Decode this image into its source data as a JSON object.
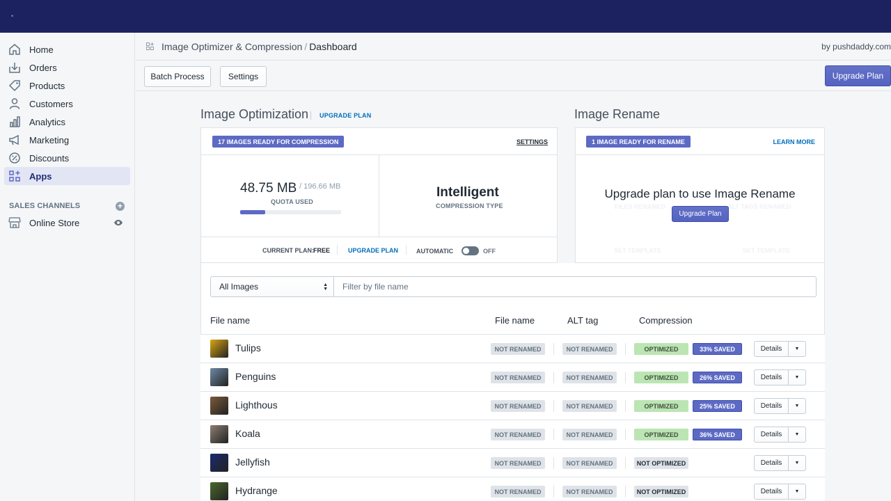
{
  "sidebar": {
    "items": [
      {
        "label": "Home",
        "icon": "home-icon"
      },
      {
        "label": "Orders",
        "icon": "orders-icon"
      },
      {
        "label": "Products",
        "icon": "tag-icon"
      },
      {
        "label": "Customers",
        "icon": "person-icon"
      },
      {
        "label": "Analytics",
        "icon": "bar-chart-icon"
      },
      {
        "label": "Marketing",
        "icon": "megaphone-icon"
      },
      {
        "label": "Discounts",
        "icon": "discount-icon"
      },
      {
        "label": "Apps",
        "icon": "apps-icon"
      }
    ],
    "sales_channels_label": "SALES CHANNELS",
    "online_store_label": "Online Store"
  },
  "header": {
    "app_name": "Image Optimizer & Compression",
    "separator": "/",
    "page": "Dashboard",
    "by": "by pushdaddy.com"
  },
  "toolbar": {
    "batch_process": "Batch Process",
    "settings": "Settings",
    "upgrade_plan": "Upgrade Plan"
  },
  "optimization": {
    "title": "Image Optimization",
    "upgrade_link": "UPGRADE PLAN",
    "ready_badge": "17 IMAGES READY FOR COMPRESSION",
    "settings_link": "SETTINGS",
    "quota_used": "48.75 MB",
    "quota_total": "/ 196.66 MB",
    "quota_label": "QUOTA USED",
    "quota_fraction": 0.248,
    "compression_type": "Intelligent",
    "compression_label": "COMPRESSION TYPE",
    "current_plan_label": "CURRENT PLAN:",
    "current_plan_value": "FREE",
    "plan_upgrade_link": "UPGRADE PLAN",
    "automatic_label": "AUTOMATIC",
    "automatic_state": "OFF"
  },
  "rename": {
    "title": "Image Rename",
    "ready_badge": "1 IMAGE READY FOR RENAME",
    "learn_more": "LEARN MORE",
    "message": "Upgrade plan to use Image Rename",
    "upgrade_button": "Upgrade Plan",
    "ghost_1": "FILES RENAMED",
    "ghost_2": "ALT TAGS RENAMED",
    "ghost_3": "SET TEMPLATE",
    "ghost_4": "SET TEMPLATE"
  },
  "filter": {
    "select_value": "All Images",
    "placeholder": "Filter by file name"
  },
  "table": {
    "headers": {
      "name": "File name",
      "file": "File name",
      "alt": "ALT tag",
      "compression": "Compression"
    },
    "rows": [
      {
        "name": "Tulips",
        "file": "NOT RENAMED",
        "alt": "NOT RENAMED",
        "status": "OPTIMIZED",
        "saved": "33% SAVED",
        "thumb": "#d8a512"
      },
      {
        "name": "Penguins",
        "file": "NOT RENAMED",
        "alt": "NOT RENAMED",
        "status": "OPTIMIZED",
        "saved": "26% SAVED",
        "thumb": "#6e8aa6"
      },
      {
        "name": "Lighthouse",
        "file": "NOT RENAMED",
        "alt": "NOT RENAMED",
        "status": "OPTIMIZED",
        "saved": "25% SAVED",
        "thumb": "#7a5a3a"
      },
      {
        "name": "Koala",
        "file": "NOT RENAMED",
        "alt": "NOT RENAMED",
        "status": "OPTIMIZED",
        "saved": "36% SAVED",
        "thumb": "#8c7f72"
      },
      {
        "name": "Jellyfish",
        "file": "NOT RENAMED",
        "alt": "NOT RENAMED",
        "status": "NOT OPTIMIZED",
        "saved": "",
        "thumb": "#1a2a6e"
      },
      {
        "name": "Hydrangeas",
        "file": "NOT RENAMED",
        "alt": "NOT RENAMED",
        "status": "NOT OPTIMIZED",
        "saved": "",
        "thumb": "#4a6a2e"
      }
    ],
    "details_label": "Details"
  },
  "colors": {
    "topbar": "#1c2260",
    "accent": "#5c6ac4",
    "link": "#006fbb",
    "optimized": "#bbe5b3"
  }
}
